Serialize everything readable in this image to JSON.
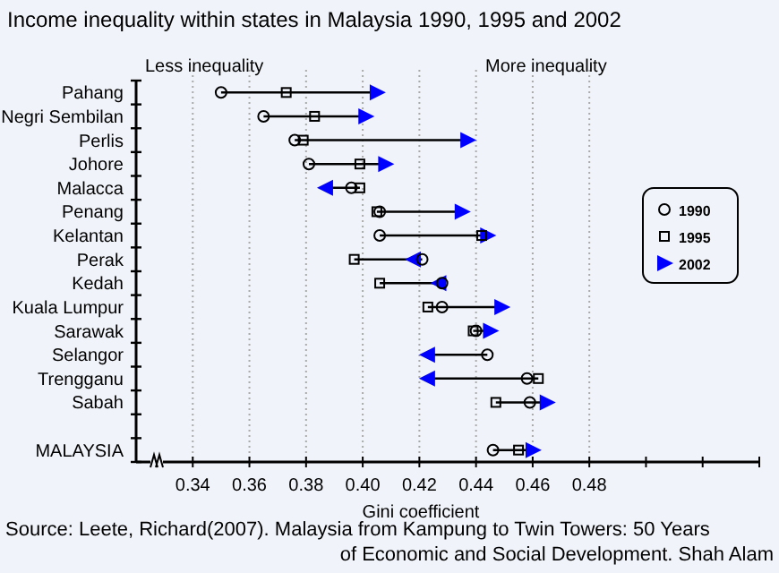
{
  "chart_data": {
    "type": "scatter",
    "title": "Income inequality within states in Malaysia 1990, 1995 and 2002",
    "xlabel": "Gini coefficient",
    "categories": [
      "Pahang",
      "Negri Sembilan",
      "Perlis",
      "Johore",
      "Malacca",
      "Penang",
      "Kelantan",
      "Perak",
      "Kedah",
      "Kuala Lumpur",
      "Sarawak",
      "Selangor",
      "Trengganu",
      "Sabah",
      null,
      "MALAYSIA"
    ],
    "series": [
      {
        "name": "1990",
        "color": "#000000",
        "marker": "circle",
        "values": [
          0.35,
          0.365,
          0.376,
          0.381,
          0.396,
          0.406,
          0.406,
          0.421,
          0.428,
          0.428,
          0.44,
          0.444,
          0.458,
          0.459,
          null,
          0.446
        ]
      },
      {
        "name": "1995",
        "color": "#000000",
        "marker": "square",
        "values": [
          0.373,
          0.383,
          0.379,
          0.399,
          0.399,
          0.405,
          0.442,
          0.397,
          0.406,
          0.423,
          0.439,
          null,
          0.462,
          0.447,
          null,
          0.455
        ]
      },
      {
        "name": "2002",
        "color": "#0000ff",
        "marker": "triangle",
        "values": [
          0.405,
          0.401,
          0.437,
          0.408,
          0.387,
          0.435,
          0.444,
          0.418,
          0.427,
          0.449,
          0.445,
          0.423,
          0.423,
          0.465,
          null,
          0.46
        ]
      }
    ],
    "xlim": [
      0.32,
      0.54
    ],
    "orientation": "horizontal",
    "xticks": [
      {
        "value": 0.34,
        "label": "0.34"
      },
      {
        "value": 0.36,
        "label": "0.36"
      },
      {
        "value": 0.38,
        "label": "0.38"
      },
      {
        "value": 0.4,
        "label": "0.40"
      },
      {
        "value": 0.42,
        "label": "0.42"
      },
      {
        "value": 0.44,
        "label": "0.44"
      },
      {
        "value": 0.46,
        "label": "0.46"
      },
      {
        "value": 0.48,
        "label": "0.48"
      },
      {
        "value": 0.5,
        "label": null
      },
      {
        "value": 0.52,
        "label": null
      },
      {
        "value": 0.54,
        "label": null
      }
    ],
    "grid": "x",
    "legend": "right",
    "annotations": [
      "Less inequality",
      "More inequality",
      "Source: Leete, Richard(2007). Malaysia from Kampung to Twin Towers: 50 Years",
      "of Economic and Social Development. Shah Alam"
    ]
  }
}
